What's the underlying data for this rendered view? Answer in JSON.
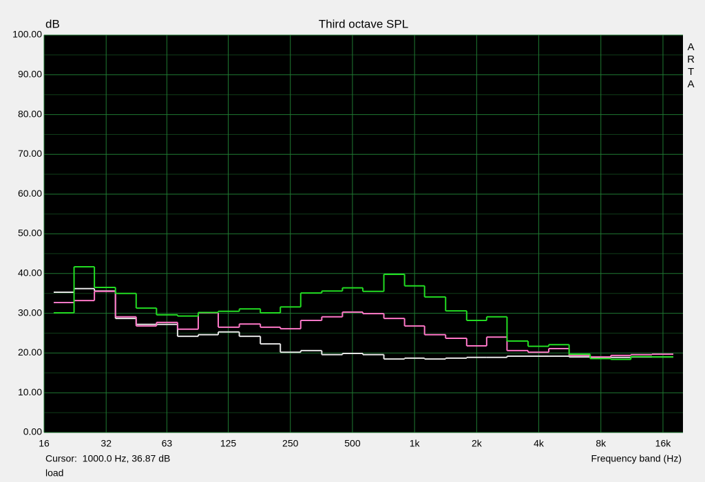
{
  "chart_data": {
    "type": "step",
    "title": "Third octave SPL",
    "y_label": "dB",
    "x_label": "Frequency band (Hz)",
    "watermark": "ARTA",
    "cursor": "Cursor:  1000.0 Hz, 36.87 dB",
    "footer": "load",
    "xscale": "log",
    "grid": true,
    "background": "#000000",
    "grid_color": "#1f7a32",
    "x": [
      20,
      25,
      31.5,
      40,
      50,
      63,
      80,
      100,
      125,
      160,
      200,
      250,
      315,
      400,
      500,
      630,
      800,
      1000,
      1250,
      1600,
      2000,
      2500,
      3150,
      4000,
      5000,
      6300,
      8000,
      10000,
      12500,
      16000
    ],
    "series": [
      {
        "color": "#e6e6e6",
        "values": [
          35.3,
          36.2,
          35.6,
          28.7,
          27.2,
          27.2,
          24.2,
          24.6,
          25.3,
          24.2,
          22.3,
          20.2,
          20.6,
          19.6,
          19.9,
          19.6,
          18.5,
          18.7,
          18.5,
          18.7,
          18.9,
          18.9,
          19.2,
          19.2,
          19.2,
          19.0,
          18.9,
          18.9,
          19.0,
          19.0
        ]
      },
      {
        "color": "#ff78c8",
        "values": [
          32.7,
          33.2,
          35.5,
          29.1,
          26.8,
          27.7,
          26.0,
          30.1,
          26.5,
          27.3,
          26.5,
          26.1,
          28.2,
          29.1,
          30.3,
          29.9,
          28.7,
          26.8,
          24.6,
          23.7,
          21.8,
          24.0,
          20.6,
          20.2,
          21.1,
          19.4,
          19.0,
          19.4,
          19.6,
          19.7
        ]
      },
      {
        "color": "#22dd22",
        "values": [
          30.1,
          41.7,
          36.5,
          35.0,
          31.3,
          29.6,
          29.3,
          30.2,
          30.5,
          31.1,
          30.1,
          31.6,
          35.1,
          35.6,
          36.4,
          35.5,
          39.8,
          36.9,
          34.1,
          30.6,
          28.2,
          29.1,
          23.0,
          21.7,
          22.1,
          19.7,
          18.6,
          18.4,
          19.1,
          19.0
        ]
      }
    ],
    "xlim": [
      16,
      20000
    ],
    "xticks": [
      16,
      32,
      63,
      125,
      250,
      500,
      {
        "value": 1000,
        "label": "1k"
      },
      {
        "value": 2000,
        "label": "2k"
      },
      {
        "value": 4000,
        "label": "4k"
      },
      {
        "value": 8000,
        "label": "8k"
      },
      {
        "value": 16000,
        "label": "16k"
      }
    ],
    "ylim": [
      0,
      100
    ],
    "yticks": [
      {
        "value": 0,
        "label": "0.00"
      },
      {
        "value": 10,
        "label": "10.00"
      },
      {
        "value": 20,
        "label": "20.00"
      },
      {
        "value": 30,
        "label": "30.00"
      },
      {
        "value": 40,
        "label": "40.00"
      },
      {
        "value": 50,
        "label": "50.00"
      },
      {
        "value": 60,
        "label": "60.00"
      },
      {
        "value": 70,
        "label": "70.00"
      },
      {
        "value": 80,
        "label": "80.00"
      },
      {
        "value": 90,
        "label": "90.00"
      },
      {
        "value": 100,
        "label": "100.00"
      }
    ]
  }
}
